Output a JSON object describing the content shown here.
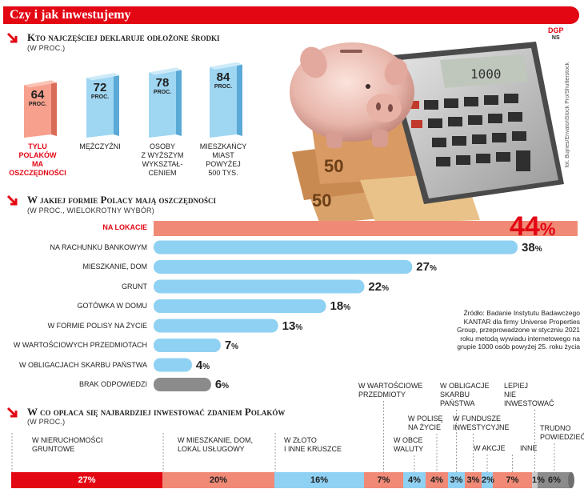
{
  "header": {
    "title": "Czy i jak inwestujemy",
    "brand_line1": "DGP",
    "brand_line2": "NS",
    "credit": "fot. Bujnes/Envato/iStock Pro/Shutterstock"
  },
  "colors": {
    "accent": "#e30613",
    "salmon": "#f08a76",
    "blue": "#8fd1f2",
    "gray": "#8b8b8b"
  },
  "section1": {
    "title": "Kto najczęściej deklaruje odłożone środki",
    "subtitle": "(w proc.)",
    "unit": "proc.",
    "items": [
      {
        "label_lines": [
          "tylu",
          "Polaków",
          "ma",
          "oszczędności"
        ],
        "value": "64",
        "highlight": true
      },
      {
        "label_lines": [
          "mężczyźni"
        ],
        "value": "72",
        "highlight": false
      },
      {
        "label_lines": [
          "osoby",
          "z wyższym",
          "wykształ-",
          "ceniem"
        ],
        "value": "78",
        "highlight": false
      },
      {
        "label_lines": [
          "mieszkańcy",
          "miast",
          "powyżej",
          "500 tys."
        ],
        "value": "84",
        "highlight": false
      }
    ]
  },
  "section2": {
    "title": "W jakiej formie Polacy mają oszczędności",
    "subtitle": "(w proc., wielokrotny wybór)"
  },
  "source": "Źródło: Badanie Instytutu Badawczego KANTAR dla firmy Universe Properties Group, przeprowadzone w styczniu 2021 roku metodą wywiadu internetowego na grupie 1000 osób powyżej 25. roku życia",
  "section3": {
    "title": "W co opłaca się najbardziej inwestować zdaniem Polaków",
    "subtitle": "(w proc.)"
  },
  "chart_data": [
    {
      "type": "bar",
      "title": "Kto najczęściej deklaruje odłożone środki",
      "categories": [
        "tylu Polaków ma oszczędności",
        "mężczyźni",
        "osoby z wyższym wykształceniem",
        "mieszkańcy miast powyżej 500 tys."
      ],
      "values": [
        64,
        72,
        78,
        84
      ]
    },
    {
      "type": "bar",
      "title": "W jakiej formie Polacy mają oszczędności",
      "categories": [
        "na lokacie",
        "na rachunku bankowym",
        "mieszkanie, dom",
        "grunt",
        "gotówka w domu",
        "w formie polisy na życie",
        "w wartościowych przedmiotach",
        "w obligacjach skarbu państwa",
        "brak odpowiedzi"
      ],
      "values": [
        44,
        38,
        27,
        22,
        18,
        13,
        7,
        4,
        6
      ],
      "value_labels": [
        "44",
        "38",
        "27",
        "22",
        "18",
        "13",
        "7",
        "4",
        "6"
      ],
      "pct_symbol": "%"
    },
    {
      "type": "bar",
      "title": "W co opłaca się najbardziej inwestować zdaniem Polaków",
      "categories": [
        "w nieruchomości gruntowe",
        "w mieszkanie, dom, lokal usługowy",
        "w złoto i inne kruszce",
        "w wartościowe przedmioty",
        "w obce waluty",
        "w polisę na życie",
        "w obligacje skarbu państwa",
        "w fundusze inwestycyjne",
        "w akcje",
        "inne",
        "lepiej nie inwestować",
        "trudno powiedzieć"
      ],
      "category_lines": [
        [
          "w nieruchomości",
          "gruntowe"
        ],
        [
          "w mieszkanie, dom,",
          "lokal usługowy"
        ],
        [
          "w złoto",
          "i inne kruszce"
        ],
        [
          "w wartościowe",
          "przedmioty"
        ],
        [
          "w obce",
          "waluty"
        ],
        [
          "w polisę",
          "na życie"
        ],
        [
          "w obligacje",
          "skarbu",
          "państwa"
        ],
        [
          "w fundusze",
          "inwestycyjne"
        ],
        [
          "w akcje"
        ],
        [
          "inne"
        ],
        [
          "lepiej",
          "nie",
          "inwestować"
        ],
        [
          "trudno",
          "powiedzieć"
        ]
      ],
      "values": [
        27,
        20,
        16,
        7,
        4,
        4,
        3,
        3,
        2,
        7,
        1,
        6
      ],
      "value_labels": [
        "27%",
        "20%",
        "16%",
        "7%",
        "4%",
        "4%",
        "3%",
        "3%",
        "2%",
        "7%",
        "1%",
        "6%"
      ]
    }
  ]
}
